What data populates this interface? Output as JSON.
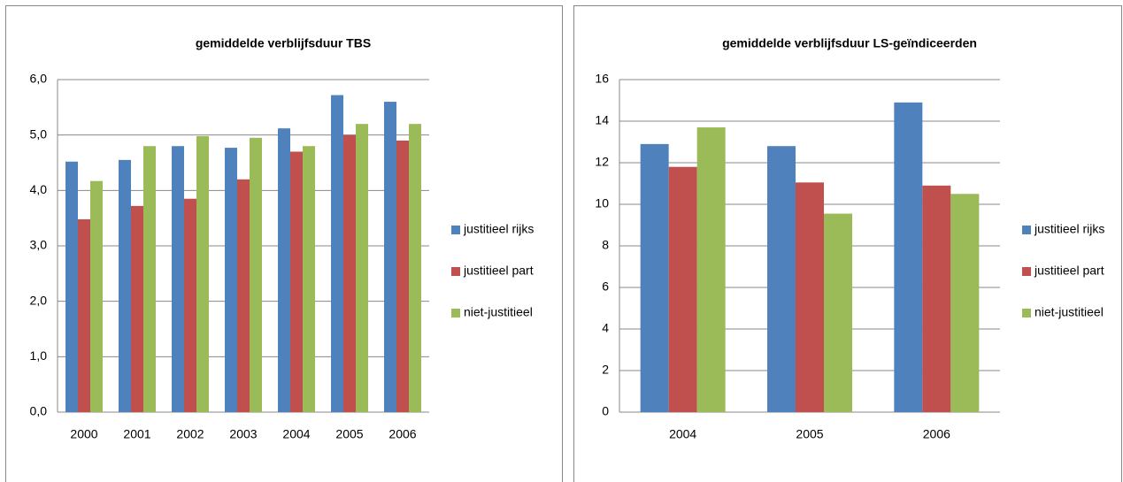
{
  "chart_data": [
    {
      "type": "bar",
      "title": "gemiddelde verblijfsduur TBS",
      "categories": [
        "2000",
        "2001",
        "2002",
        "2003",
        "2004",
        "2005",
        "2006"
      ],
      "series": [
        {
          "name": "justitieel rijks",
          "color": "#4f81bd",
          "values": [
            4.52,
            4.55,
            4.8,
            4.77,
            5.12,
            5.72,
            5.6
          ]
        },
        {
          "name": "justitieel part",
          "color": "#c0504d",
          "values": [
            3.48,
            3.72,
            3.85,
            4.2,
            4.7,
            5.0,
            4.9
          ]
        },
        {
          "name": "niet-justitieel",
          "color": "#9bbb59",
          "values": [
            4.17,
            4.8,
            4.98,
            4.95,
            4.8,
            5.2,
            5.2
          ]
        }
      ],
      "ylim": [
        0,
        6
      ],
      "yticks": [
        {
          "value": 0,
          "label": "0,0"
        },
        {
          "value": 1,
          "label": "1,0"
        },
        {
          "value": 2,
          "label": "2,0"
        },
        {
          "value": 3,
          "label": "3,0"
        },
        {
          "value": 4,
          "label": "4,0"
        },
        {
          "value": 5,
          "label": "5,0"
        },
        {
          "value": 6,
          "label": "6,0"
        }
      ],
      "grid": true,
      "legend": "right"
    },
    {
      "type": "bar",
      "title": "gemiddelde verblijfsduur LS-geïndiceerden",
      "categories": [
        "2004",
        "2005",
        "2006"
      ],
      "series": [
        {
          "name": "justitieel rijks",
          "color": "#4f81bd",
          "values": [
            12.9,
            12.8,
            14.9
          ]
        },
        {
          "name": "justitieel part",
          "color": "#c0504d",
          "values": [
            11.8,
            11.05,
            10.9
          ]
        },
        {
          "name": "niet-justitieel",
          "color": "#9bbb59",
          "values": [
            13.7,
            9.55,
            10.5
          ]
        }
      ],
      "ylim": [
        0,
        16
      ],
      "yticks": [
        0,
        2,
        4,
        6,
        8,
        10,
        12,
        14,
        16
      ],
      "grid": true,
      "legend": "right"
    }
  ]
}
